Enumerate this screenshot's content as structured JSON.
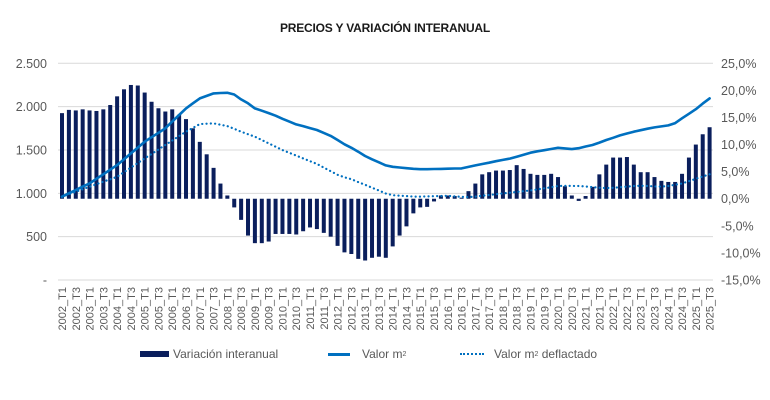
{
  "chart_data": {
    "type": "bar+line",
    "title": "PRECIOS Y VARIACIÓN INTERANUAL",
    "categories": [
      "2002_T1",
      "2002_T2",
      "2002_T3",
      "2002_T4",
      "2003_T1",
      "2003_T2",
      "2003_T3",
      "2003_T4",
      "2004_T1",
      "2004_T2",
      "2004_T3",
      "2004_T4",
      "2005_T1",
      "2005_T2",
      "2005_T3",
      "2005_T4",
      "2006_T1",
      "2006_T2",
      "2006_T3",
      "2006_T4",
      "2007_T1",
      "2007_T2",
      "2007_T3",
      "2007_T4",
      "2008_T1",
      "2008_T2",
      "2008_T3",
      "2008_T4",
      "2009_T1",
      "2009_T2",
      "2009_T3",
      "2009_T4",
      "2010_T1",
      "2010_T2",
      "2010_T3",
      "2010_T4",
      "2011_T1",
      "2011_T2",
      "2011_T3",
      "2011_T4",
      "2012_T1",
      "2012_T2",
      "2012_T3",
      "2012_T4",
      "2013_T1",
      "2013_T2",
      "2013_T3",
      "2013_T4",
      "2014_T1",
      "2014_T2",
      "2014_T3",
      "2014_T4",
      "2015_T1",
      "2015_T2",
      "2015_T3",
      "2015_T4",
      "2016_T1",
      "2016_T2",
      "2016_T3",
      "2016_T4",
      "2017_T1",
      "2017_T2",
      "2017_T3",
      "2017_T4",
      "2018_T1",
      "2018_T2",
      "2018_T3",
      "2018_T4",
      "2019_T1",
      "2019_T2",
      "2019_T3",
      "2019_T4",
      "2020_T1",
      "2020_T2",
      "2020_T3",
      "2020_T4",
      "2021_T1",
      "2021_T2",
      "2021_T3",
      "2021_T4",
      "2022_T1",
      "2022_T2",
      "2022_T3",
      "2022_T4",
      "2023_T1",
      "2023_T2",
      "2023_T3",
      "2023_T4",
      "2024_T1",
      "2024_T2",
      "2024_T3",
      "2024_T4",
      "2025_T1",
      "2025_T2",
      "2025_T3"
    ],
    "left_axis": {
      "ylim": [
        0,
        2500
      ],
      "ticks": [
        0,
        500,
        1000,
        1500,
        2000,
        2500
      ],
      "tick_labels": [
        "-",
        "500",
        "1.000",
        "1.500",
        "2.000",
        "2.500"
      ]
    },
    "right_axis": {
      "ylim": [
        -15,
        25
      ],
      "unit": "%",
      "ticks": [
        -15,
        -10,
        -5,
        0,
        5,
        10,
        15,
        20,
        25
      ],
      "tick_labels": [
        "-15,0%",
        "-10,0%",
        "-5,0%",
        "0,0%",
        "5,0%",
        "10,0%",
        "15,0%",
        "20,0%",
        "25,0%"
      ]
    },
    "grid": true,
    "legend_placement": "bottom",
    "series": [
      {
        "name": "Variación interanual",
        "type": "bar",
        "axis": "right",
        "color": "#0a1e5c",
        "values": [
          15.8,
          16.4,
          16.3,
          16.5,
          16.3,
          16.2,
          16.5,
          17.3,
          18.9,
          20.2,
          21.0,
          20.9,
          19.6,
          17.9,
          16.7,
          16.1,
          16.5,
          15.5,
          14.7,
          13.0,
          10.5,
          8.2,
          5.7,
          2.8,
          0.6,
          -1.6,
          -3.9,
          -6.8,
          -8.2,
          -8.2,
          -7.9,
          -6.5,
          -6.5,
          -6.5,
          -6.6,
          -6.0,
          -5.3,
          -5.6,
          -6.3,
          -7.0,
          -8.7,
          -9.9,
          -10.2,
          -11.1,
          -11.4,
          -10.9,
          -10.7,
          -10.9,
          -8.8,
          -6.8,
          -5.1,
          -2.7,
          -1.6,
          -1.5,
          -0.5,
          0.6,
          0.6,
          0.5,
          0.2,
          1.4,
          2.8,
          4.5,
          4.9,
          5.2,
          5.2,
          5.3,
          6.2,
          5.5,
          4.6,
          4.4,
          4.4,
          4.6,
          4.0,
          2.3,
          0.6,
          -0.4,
          0.5,
          2.2,
          4.5,
          6.3,
          7.6,
          7.6,
          7.7,
          6.3,
          4.9,
          4.9,
          4.0,
          3.3,
          3.1,
          3.1,
          4.6,
          7.6,
          10.0,
          11.9,
          13.2
        ]
      },
      {
        "name": "Valor m2",
        "type": "line",
        "axis": "left",
        "style": "solid",
        "color": "#0070c0",
        "values": [
          961,
          1000,
          1038,
          1077,
          1115,
          1168,
          1220,
          1273,
          1326,
          1393,
          1460,
          1528,
          1595,
          1647,
          1698,
          1750,
          1827,
          1903,
          1980,
          2038,
          2095,
          2124,
          2153,
          2157,
          2160,
          2140,
          2084,
          2038,
          1980,
          1953,
          1926,
          1895,
          1860,
          1827,
          1795,
          1775,
          1752,
          1730,
          1697,
          1663,
          1615,
          1566,
          1525,
          1480,
          1430,
          1393,
          1358,
          1322,
          1306,
          1298,
          1290,
          1283,
          1278,
          1278,
          1280,
          1282,
          1284,
          1286,
          1288,
          1305,
          1322,
          1338,
          1353,
          1370,
          1385,
          1400,
          1423,
          1446,
          1469,
          1485,
          1498,
          1511,
          1525,
          1518,
          1510,
          1520,
          1540,
          1558,
          1585,
          1615,
          1640,
          1668,
          1690,
          1711,
          1728,
          1745,
          1761,
          1772,
          1783,
          1810,
          1865,
          1917,
          1970,
          2035,
          2095
        ]
      },
      {
        "name": "Valor m2 deflactado",
        "type": "line",
        "axis": "left",
        "style": "dotted",
        "color": "#0070c0",
        "values": [
          961,
          990,
          1018,
          1047,
          1076,
          1105,
          1134,
          1162,
          1191,
          1244,
          1297,
          1350,
          1403,
          1454,
          1506,
          1557,
          1608,
          1660,
          1711,
          1755,
          1799,
          1803,
          1807,
          1792,
          1776,
          1744,
          1711,
          1682,
          1653,
          1615,
          1576,
          1538,
          1499,
          1467,
          1435,
          1403,
          1371,
          1339,
          1297,
          1255,
          1214,
          1185,
          1163,
          1130,
          1098,
          1065,
          1033,
          998,
          978,
          973,
          968,
          962,
          962,
          965,
          967,
          969,
          971,
          965,
          960,
          956,
          962,
          972,
          981,
          990,
          999,
          1007,
          1016,
          1025,
          1034,
          1045,
          1058,
          1071,
          1085,
          1087,
          1086,
          1085,
          1079,
          1072,
          1065,
          1060,
          1064,
          1071,
          1078,
          1085,
          1087,
          1084,
          1080,
          1077,
          1085,
          1100,
          1113,
          1140,
          1168,
          1194,
          1219
        ]
      }
    ]
  },
  "legend": {
    "bar_label": "Variación interanual",
    "line_label_main": "Valor m",
    "line_label_sup": "2",
    "dotted_label_main": "Valor m",
    "dotted_label_sup": "2",
    "dotted_label_rest": " deflactado"
  }
}
